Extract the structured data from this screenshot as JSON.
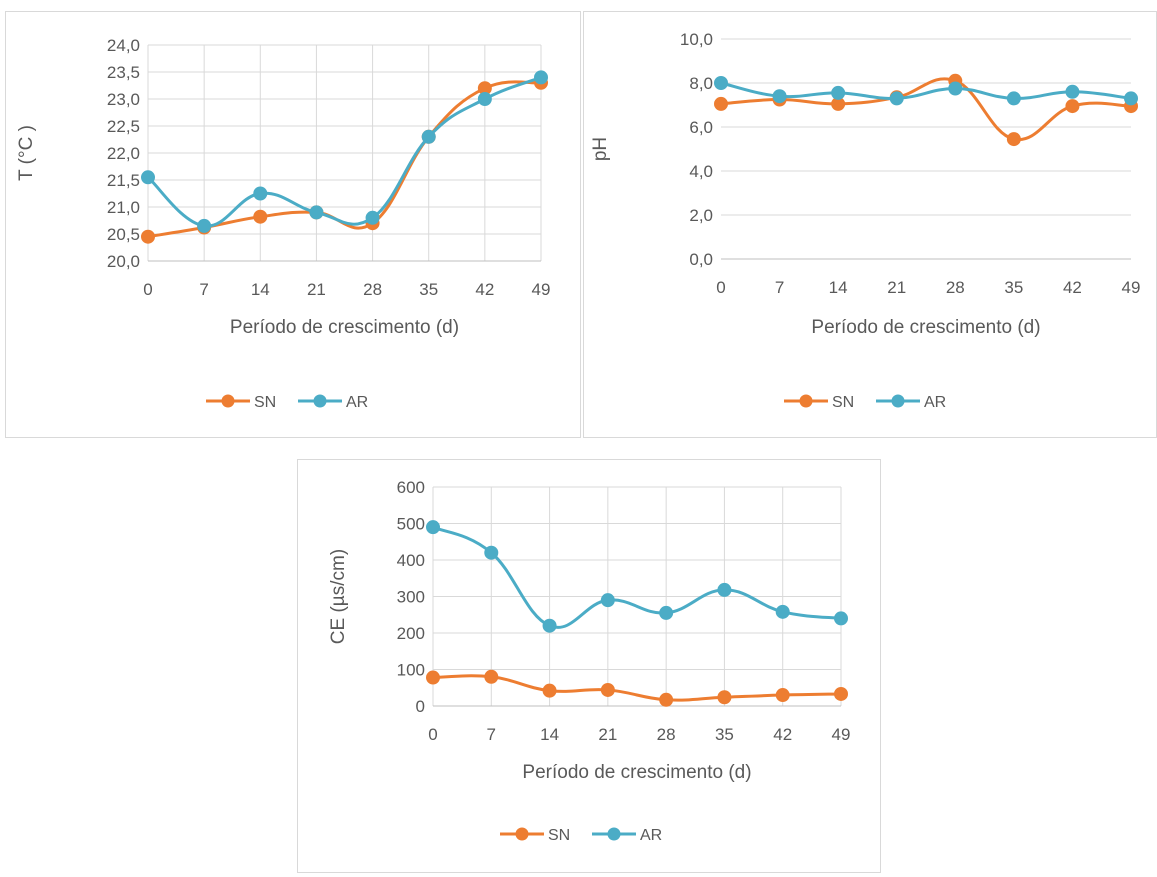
{
  "colors": {
    "SN": "#ED7D31",
    "AR": "#4BACC6",
    "grid": "#d9d9d9",
    "axis": "#bfbfbf",
    "text": "#595959"
  },
  "chart_data": [
    {
      "type": "line",
      "smooth": true,
      "x": [
        0,
        7,
        14,
        21,
        28,
        35,
        42,
        49
      ],
      "series": [
        {
          "name": "SN",
          "values": [
            20.45,
            20.62,
            20.82,
            20.9,
            20.7,
            22.3,
            23.2,
            23.3
          ]
        },
        {
          "name": "AR",
          "values": [
            21.55,
            20.65,
            21.25,
            20.9,
            20.8,
            22.3,
            23.0,
            23.4
          ]
        }
      ],
      "title": "",
      "xlabel": "Período de crescimento (d)",
      "ylabel": "T  (°C )",
      "ylim": [
        20.0,
        24.0
      ],
      "ytick_step": 0.5,
      "ytick_labels": [
        "20,0",
        "20,5",
        "21,0",
        "21,5",
        "22,0",
        "22,5",
        "23,0",
        "23,5",
        "24,0"
      ],
      "xtick_labels": [
        "0",
        "7",
        "14",
        "21",
        "28",
        "35",
        "42",
        "49"
      ],
      "grid": "both",
      "legend": "bottom"
    },
    {
      "type": "line",
      "smooth": true,
      "x": [
        0,
        7,
        14,
        21,
        28,
        35,
        42,
        49
      ],
      "series": [
        {
          "name": "SN",
          "values": [
            7.05,
            7.25,
            7.05,
            7.35,
            8.1,
            5.45,
            6.95,
            6.95
          ]
        },
        {
          "name": "AR",
          "values": [
            8.0,
            7.4,
            7.55,
            7.3,
            7.75,
            7.3,
            7.6,
            7.3
          ]
        }
      ],
      "title": "",
      "xlabel": "Período de crescimento (d)",
      "ylabel": "pH",
      "ylim": [
        0.0,
        10.0
      ],
      "ytick_step": 2.0,
      "ytick_labels": [
        "0,0",
        "2,0",
        "4,0",
        "6,0",
        "8,0",
        "10,0"
      ],
      "xtick_labels": [
        "0",
        "7",
        "14",
        "21",
        "28",
        "35",
        "42",
        "49"
      ],
      "grid": "horizontal",
      "legend": "bottom"
    },
    {
      "type": "line",
      "smooth": true,
      "x": [
        0,
        7,
        14,
        21,
        28,
        35,
        42,
        49
      ],
      "series": [
        {
          "name": "SN",
          "values": [
            78,
            80,
            42,
            44,
            17,
            24,
            30,
            33
          ]
        },
        {
          "name": "AR",
          "values": [
            490,
            420,
            220,
            290,
            255,
            318,
            258,
            240
          ]
        }
      ],
      "title": "",
      "xlabel": "Período de crescimento (d)",
      "ylabel": "CE (µs/cm)",
      "ylim": [
        0,
        600
      ],
      "ytick_step": 100,
      "ytick_labels": [
        "0",
        "100",
        "200",
        "300",
        "400",
        "500",
        "600"
      ],
      "xtick_labels": [
        "0",
        "7",
        "14",
        "21",
        "28",
        "35",
        "42",
        "49"
      ],
      "grid": "both",
      "legend": "bottom"
    }
  ]
}
